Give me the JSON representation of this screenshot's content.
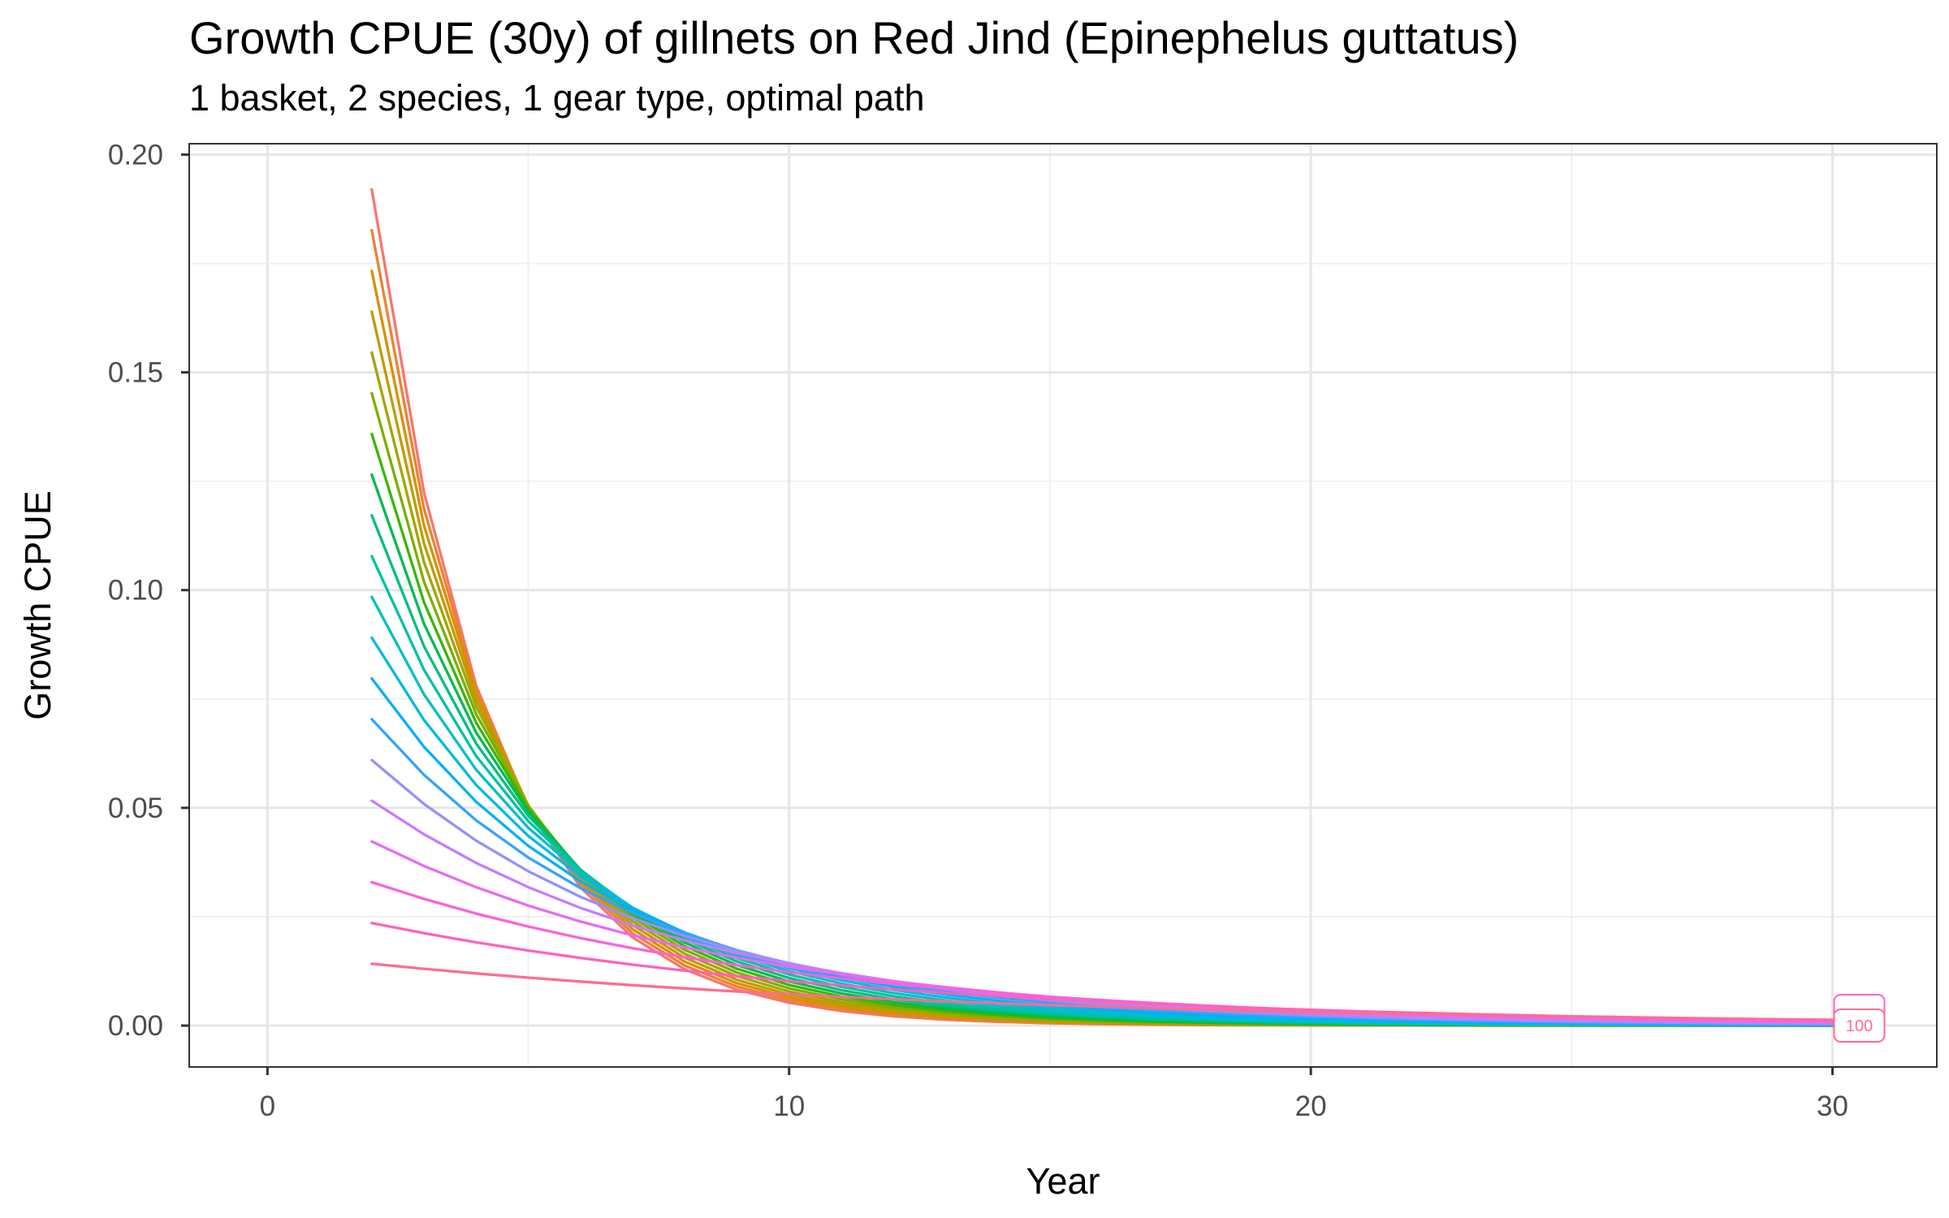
{
  "chart_data": {
    "type": "line",
    "title": "Growth CPUE (30y) of gillnets on Red Jind (Epinephelus guttatus)",
    "subtitle": "1 basket, 2 species, 1 gear type, optimal path",
    "xlabel": "Year",
    "ylabel": "Growth CPUE",
    "xlim": [
      -1.5,
      32
    ],
    "ylim": [
      -0.0095,
      0.2025
    ],
    "x_ticks": [
      0,
      10,
      20,
      30
    ],
    "x_tick_labels": [
      "0",
      "10",
      "20",
      "30"
    ],
    "y_ticks": [
      0,
      0.05,
      0.1,
      0.15,
      0.2
    ],
    "y_tick_labels": [
      "0.00",
      "0.05",
      "0.10",
      "0.15",
      "0.20"
    ],
    "grid": true,
    "legend": "none",
    "x": [
      2,
      3,
      4,
      5,
      6,
      7,
      8,
      9,
      10,
      11,
      12,
      13,
      14,
      15,
      16,
      17,
      18,
      19,
      20,
      21,
      22,
      23,
      24,
      25,
      26,
      27,
      28,
      29,
      30
    ],
    "series_model": {
      "form": "y0 * exp(-k * (x - 2))",
      "y0_first": 0.192,
      "y0_last": 0.0142,
      "k_first": 0.45,
      "k_last": 0.085,
      "count": 20
    },
    "series_colors": [
      "#F8766D",
      "#EA8331",
      "#D89000",
      "#C09B00",
      "#A3A500",
      "#7CAE00",
      "#39B600",
      "#00BB4E",
      "#00BF7D",
      "#00C1A3",
      "#00BFC4",
      "#00BAE0",
      "#00B0F6",
      "#35A2FF",
      "#9590FF",
      "#C77CFF",
      "#E76BF3",
      "#FA62DB",
      "#FF62BC",
      "#FF6C91"
    ],
    "end_labels": [
      {
        "text": "",
        "color": "#FA62DB"
      },
      {
        "text": "100",
        "color": "#FF6C91"
      }
    ]
  }
}
